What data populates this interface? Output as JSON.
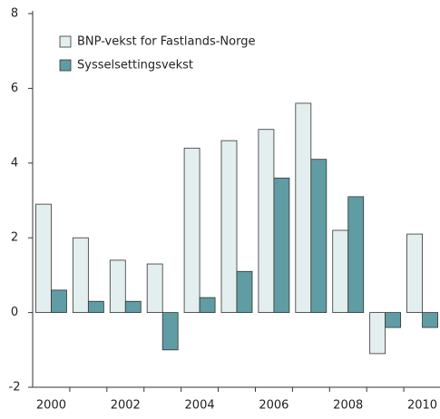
{
  "chart_data": {
    "type": "bar",
    "categories": [
      "2000",
      null,
      "2002",
      null,
      "2004",
      null,
      "2006",
      null,
      "2008",
      null,
      "2010"
    ],
    "series": [
      {
        "name": "BNP-vekst for Fastlands-Norge",
        "color": "#e3eeee",
        "values": [
          2.9,
          2.0,
          1.4,
          1.3,
          4.4,
          4.6,
          4.9,
          5.6,
          2.2,
          -1.1,
          2.1
        ]
      },
      {
        "name": "Sysselsettingsvekst",
        "color": "#5f9ca3",
        "values": [
          0.6,
          0.3,
          0.3,
          -1.0,
          0.4,
          1.1,
          3.6,
          4.1,
          3.1,
          -0.4,
          -0.4
        ]
      }
    ],
    "ylim": [
      -2,
      8
    ],
    "yticks": [
      -2,
      0,
      2,
      4,
      6,
      8
    ],
    "legend": "upper left",
    "grid": false
  }
}
